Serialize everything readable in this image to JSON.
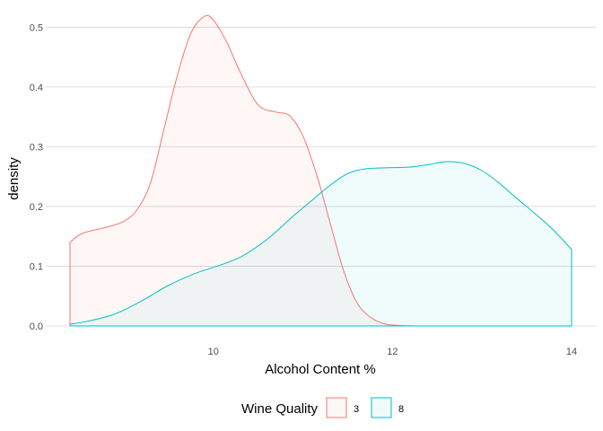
{
  "chart_data": {
    "type": "area",
    "title": "",
    "xlabel": "Alcohol Content %",
    "ylabel": "density",
    "xlim": [
      8.4,
      14.0
    ],
    "ylim": [
      0.0,
      0.52
    ],
    "x_ticks": [
      10,
      12,
      14
    ],
    "y_ticks": [
      0.0,
      0.1,
      0.2,
      0.3,
      0.4,
      0.5
    ],
    "x_tick_labels": [
      "10",
      "12",
      "14"
    ],
    "y_tick_labels": [
      "0.0",
      "0.1",
      "0.2",
      "0.3",
      "0.4",
      "0.5"
    ],
    "grid": "horizontal",
    "legend": {
      "title": "Wine Quality",
      "placement": "bottom",
      "entries": [
        "3",
        "8"
      ]
    },
    "series": [
      {
        "name": "3",
        "color": "#F8766D",
        "fill": "#F8766D",
        "points": [
          [
            8.4,
            0.14
          ],
          [
            8.5,
            0.152
          ],
          [
            8.6,
            0.158
          ],
          [
            8.8,
            0.165
          ],
          [
            9.0,
            0.175
          ],
          [
            9.15,
            0.195
          ],
          [
            9.3,
            0.24
          ],
          [
            9.45,
            0.33
          ],
          [
            9.6,
            0.42
          ],
          [
            9.75,
            0.49
          ],
          [
            9.9,
            0.518
          ],
          [
            10.0,
            0.512
          ],
          [
            10.15,
            0.475
          ],
          [
            10.3,
            0.425
          ],
          [
            10.5,
            0.37
          ],
          [
            10.7,
            0.358
          ],
          [
            10.85,
            0.352
          ],
          [
            11.0,
            0.318
          ],
          [
            11.15,
            0.255
          ],
          [
            11.3,
            0.175
          ],
          [
            11.45,
            0.095
          ],
          [
            11.6,
            0.04
          ],
          [
            11.75,
            0.015
          ],
          [
            11.9,
            0.004
          ],
          [
            12.05,
            0.001
          ],
          [
            12.25,
            0.0
          ]
        ]
      },
      {
        "name": "8",
        "color": "#00BFC4",
        "fill": "#00BFC4",
        "points": [
          [
            8.4,
            0.003
          ],
          [
            8.6,
            0.008
          ],
          [
            8.9,
            0.02
          ],
          [
            9.2,
            0.042
          ],
          [
            9.5,
            0.068
          ],
          [
            9.8,
            0.088
          ],
          [
            10.0,
            0.098
          ],
          [
            10.3,
            0.115
          ],
          [
            10.6,
            0.145
          ],
          [
            10.9,
            0.185
          ],
          [
            11.1,
            0.21
          ],
          [
            11.3,
            0.235
          ],
          [
            11.5,
            0.255
          ],
          [
            11.7,
            0.263
          ],
          [
            12.0,
            0.265
          ],
          [
            12.2,
            0.266
          ],
          [
            12.4,
            0.27
          ],
          [
            12.6,
            0.275
          ],
          [
            12.8,
            0.272
          ],
          [
            13.0,
            0.26
          ],
          [
            13.2,
            0.238
          ],
          [
            13.4,
            0.212
          ],
          [
            13.6,
            0.187
          ],
          [
            13.8,
            0.16
          ],
          [
            14.0,
            0.128
          ]
        ]
      }
    ]
  }
}
